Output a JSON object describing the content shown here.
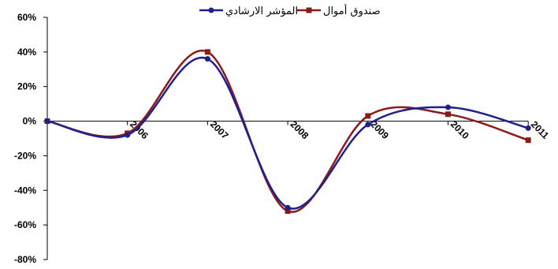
{
  "chart_data": {
    "type": "line",
    "title": "",
    "xlabel": "",
    "ylabel": "",
    "categories": [
      "",
      "2006",
      "2007",
      "2008",
      "2009",
      "2010",
      "2011"
    ],
    "ylim": [
      -80,
      60
    ],
    "yticks": [
      60,
      40,
      20,
      0,
      -20,
      -40,
      -60,
      -80
    ],
    "ytick_labels": [
      "60%",
      "40%",
      "20%",
      "0%",
      "-20%",
      "-40%",
      "-60%",
      "-80%"
    ],
    "grid": false,
    "smooth": true,
    "legend_position": "top-center",
    "series": [
      {
        "name": "المؤشر الارشادي",
        "color": "#1f1f8f",
        "marker": "circle",
        "values": [
          0,
          -8,
          36,
          -50,
          -2,
          8,
          -4
        ]
      },
      {
        "name": "صندوق أموال",
        "color": "#8b1a1a",
        "marker": "square",
        "values": [
          0,
          -7,
          40,
          -52,
          3,
          4,
          -11
        ]
      }
    ]
  }
}
